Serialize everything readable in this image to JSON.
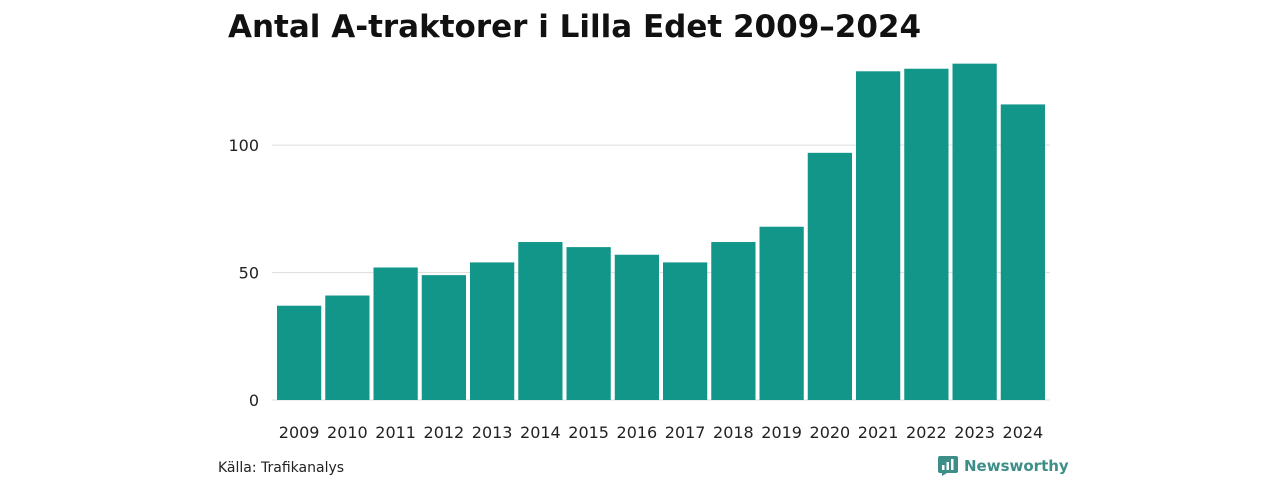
{
  "chart_data": {
    "type": "bar",
    "title": "Antal A-traktorer i Lilla Edet 2009–2024",
    "categories": [
      "2009",
      "2010",
      "2011",
      "2012",
      "2013",
      "2014",
      "2015",
      "2016",
      "2017",
      "2018",
      "2019",
      "2020",
      "2021",
      "2022",
      "2023",
      "2024"
    ],
    "values": [
      37,
      41,
      52,
      49,
      54,
      62,
      60,
      57,
      54,
      62,
      68,
      97,
      129,
      130,
      132,
      116
    ],
    "ylim": [
      0,
      135
    ],
    "yticks": [
      0,
      50,
      100
    ],
    "xlabel": "",
    "ylabel": "",
    "grid": true,
    "bar_color": "#13968a",
    "grid_color": "#dddddd"
  },
  "footer": {
    "source": "Källa: Trafikanalys",
    "brand": "Newsworthy",
    "brand_icon": "newsworthy-logo-icon",
    "brand_color": "#3e8e88"
  }
}
